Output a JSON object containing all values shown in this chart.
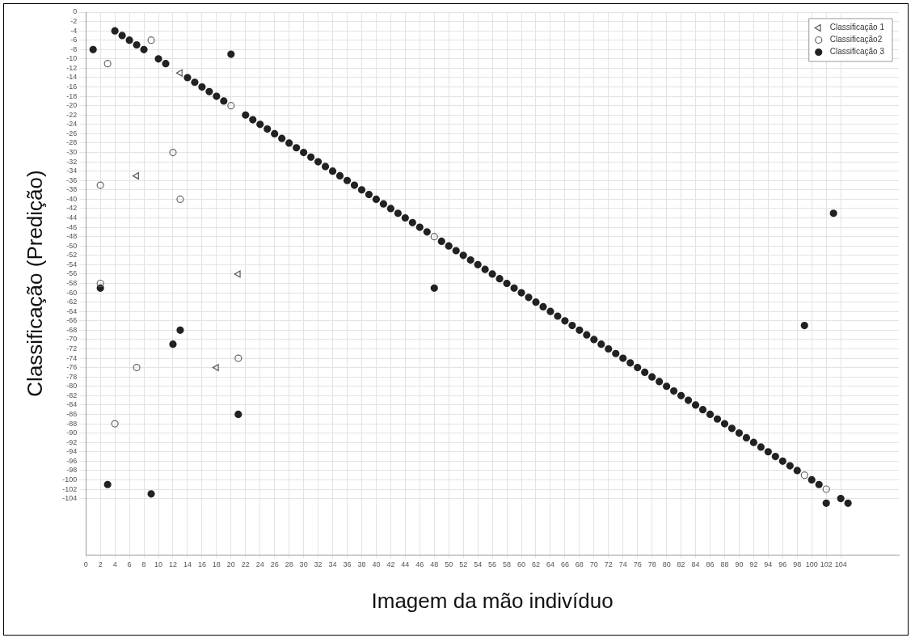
{
  "chart_data": {
    "type": "scatter",
    "xlabel": "Imagem da mão indivíduo",
    "ylabel": "Classificação (Predição)",
    "xlim": [
      0,
      112
    ],
    "ylim": [
      -116,
      0
    ],
    "xticks": [
      0,
      2,
      4,
      6,
      8,
      10,
      12,
      14,
      16,
      18,
      20,
      22,
      24,
      26,
      28,
      30,
      32,
      34,
      36,
      38,
      40,
      42,
      44,
      46,
      48,
      50,
      52,
      54,
      56,
      58,
      60,
      62,
      64,
      66,
      68,
      70,
      72,
      74,
      76,
      78,
      80,
      82,
      84,
      86,
      88,
      90,
      92,
      94,
      96,
      98,
      100,
      102,
      104
    ],
    "yticks": [
      0,
      -2,
      -4,
      -6,
      -8,
      -10,
      -12,
      -14,
      -16,
      -18,
      -20,
      -22,
      -24,
      -26,
      -28,
      -30,
      -32,
      -34,
      -36,
      -38,
      -40,
      -42,
      -44,
      -46,
      -48,
      -50,
      -52,
      -54,
      -56,
      -58,
      -60,
      -62,
      -64,
      -66,
      -68,
      -70,
      -72,
      -74,
      -76,
      -78,
      -80,
      -82,
      -84,
      -86,
      -88,
      -90,
      -92,
      -94,
      -96,
      -98,
      -100,
      -102,
      -104
    ],
    "grid": true,
    "legend": "top right",
    "series": [
      {
        "name": "Classificação 1",
        "color": "#555555",
        "marker": "triangle",
        "x": [
          7,
          13,
          18,
          21
        ],
        "values": [
          -35,
          -13,
          -76,
          -56
        ]
      },
      {
        "name": "Classificação2",
        "color": "#666666",
        "marker": "circle",
        "x": [
          2,
          2,
          3,
          4,
          7,
          9,
          12,
          13,
          20,
          21,
          48,
          99,
          102
        ],
        "values": [
          -37,
          -58,
          -11,
          -88,
          -76,
          -6,
          -30,
          -40,
          -20,
          -74,
          -48,
          -99,
          -102
        ]
      },
      {
        "name": "Classificação 3",
        "color": "#222222",
        "x": [
          1,
          2,
          3,
          4,
          5,
          6,
          7,
          8,
          9,
          10,
          11,
          12,
          13,
          14,
          15,
          16,
          17,
          18,
          19,
          20,
          21,
          22,
          23,
          24,
          25,
          26,
          27,
          28,
          29,
          30,
          31,
          32,
          33,
          34,
          35,
          36,
          37,
          38,
          39,
          40,
          41,
          42,
          43,
          44,
          45,
          46,
          47,
          48,
          49,
          50,
          51,
          52,
          53,
          54,
          55,
          56,
          57,
          58,
          59,
          60,
          61,
          62,
          63,
          64,
          65,
          66,
          67,
          68,
          69,
          70,
          71,
          72,
          73,
          74,
          75,
          76,
          77,
          78,
          79,
          80,
          81,
          82,
          83,
          84,
          85,
          86,
          87,
          88,
          89,
          90,
          91,
          92,
          93,
          94,
          95,
          96,
          97,
          98,
          99,
          100,
          101,
          102,
          103,
          104,
          105
        ],
        "values": [
          -8,
          -59,
          -101,
          -4,
          -5,
          -6,
          -7,
          -8,
          -103,
          -10,
          -11,
          -71,
          -68,
          -14,
          -15,
          -16,
          -17,
          -18,
          -19,
          -9,
          -86,
          -22,
          -23,
          -24,
          -25,
          -26,
          -27,
          -28,
          -29,
          -30,
          -31,
          -32,
          -33,
          -34,
          -35,
          -36,
          -37,
          -38,
          -39,
          -40,
          -41,
          -42,
          -43,
          -44,
          -45,
          -46,
          -47,
          -59,
          -49,
          -50,
          -51,
          -52,
          -53,
          -54,
          -55,
          -56,
          -57,
          -58,
          -59,
          -60,
          -61,
          -62,
          -63,
          -64,
          -65,
          -66,
          -67,
          -68,
          -69,
          -70,
          -71,
          -72,
          -73,
          -74,
          -75,
          -76,
          -77,
          -78,
          -79,
          -80,
          -81,
          -82,
          -83,
          -84,
          -85,
          -86,
          -87,
          -88,
          -89,
          -90,
          -91,
          -92,
          -93,
          -94,
          -95,
          -96,
          -97,
          -98,
          -67,
          -100,
          -101,
          -105,
          -43,
          -104,
          -105
        ]
      }
    ]
  }
}
